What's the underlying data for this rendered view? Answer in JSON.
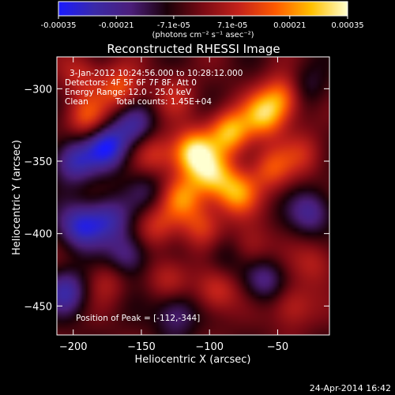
{
  "colorbar": {
    "ticks": [
      "-0.00035",
      "-0.00021",
      "-7.1e-05",
      "7.1e-05",
      "0.00021",
      "0.00035"
    ],
    "tick_values": [
      -0.00035,
      -0.00021,
      -7.1e-05,
      7.1e-05,
      0.00021,
      0.00035
    ],
    "range": [
      -0.00035,
      0.00035
    ],
    "units_label": "(photons cm⁻² s⁻¹ asec⁻²)",
    "colors": [
      "#1a1aff",
      "#3a2aa8",
      "#4b1e7a",
      "#1a0008",
      "#7a0a14",
      "#c4221a",
      "#ff5a00",
      "#ffc000",
      "#ffffd0"
    ]
  },
  "plot": {
    "title": "Reconstructed RHESSI Image",
    "info": {
      "time_range": "3-Jan-2012 10:24:56.000 to 10:28:12.000",
      "detectors": "Detectors: 4F 5F 6F 7F 8F, Att 0",
      "energy": "Energy Range: 12.0 - 25.0 keV",
      "algorithm": "Clean",
      "counts": "Total counts: 1.45E+04"
    },
    "peak_text": "Position of Peak = [-112,-344]",
    "timestamp": "24-Apr-2014 16:42"
  },
  "chart_data": {
    "type": "heatmap",
    "title": "Reconstructed RHESSI Image",
    "xlabel": "Heliocentric X (arcsec)",
    "ylabel": "Heliocentric Y (arcsec)",
    "xlim": [
      -212,
      -12
    ],
    "ylim": [
      -470,
      -278
    ],
    "x_ticks": [
      -200,
      -150,
      -100,
      -50
    ],
    "y_ticks": [
      -300,
      -350,
      -400,
      -450
    ],
    "x_tick_labels": [
      "−200",
      "−150",
      "−100",
      "−50"
    ],
    "y_tick_labels": [
      "−300",
      "−350",
      "−400",
      "−450"
    ],
    "value_range": [
      -0.00035,
      0.00035
    ],
    "peak_position": [
      -112,
      -344
    ],
    "sources": [
      {
        "x": -112,
        "y": -344,
        "value": 0.00035
      },
      {
        "x": -85,
        "y": -330,
        "value": 0.0003
      },
      {
        "x": -60,
        "y": -318,
        "value": 0.00028
      },
      {
        "x": -45,
        "y": -305,
        "value": 0.00024
      },
      {
        "x": -98,
        "y": -360,
        "value": 0.00026
      },
      {
        "x": -120,
        "y": -375,
        "value": 0.00022
      },
      {
        "x": -80,
        "y": -372,
        "value": 0.00025
      },
      {
        "x": -55,
        "y": -355,
        "value": 0.00018
      },
      {
        "x": -30,
        "y": -345,
        "value": 0.00012
      },
      {
        "x": -140,
        "y": -345,
        "value": 0.00015
      },
      {
        "x": -165,
        "y": -300,
        "value": 0.0002
      },
      {
        "x": -190,
        "y": -320,
        "value": 0.00018
      },
      {
        "x": -195,
        "y": -290,
        "value": 0.00012
      },
      {
        "x": -140,
        "y": -395,
        "value": 0.00014
      },
      {
        "x": -105,
        "y": -395,
        "value": 0.00016
      },
      {
        "x": -70,
        "y": -410,
        "value": 0.00012
      },
      {
        "x": -95,
        "y": -440,
        "value": 0.00016
      },
      {
        "x": -130,
        "y": -430,
        "value": 0.00012
      },
      {
        "x": -175,
        "y": -432,
        "value": 0.0001
      },
      {
        "x": -40,
        "y": -450,
        "value": 0.00014
      },
      {
        "x": -22,
        "y": -420,
        "value": 0.00012
      },
      {
        "x": -125,
        "y": -305,
        "value": 0.0001
      },
      {
        "x": -175,
        "y": -340,
        "value": -0.00028
      },
      {
        "x": -200,
        "y": -350,
        "value": -0.00022
      },
      {
        "x": -155,
        "y": -325,
        "value": -0.00018
      },
      {
        "x": -195,
        "y": -395,
        "value": -0.00024
      },
      {
        "x": -175,
        "y": -390,
        "value": -0.0002
      },
      {
        "x": -160,
        "y": -415,
        "value": -0.00018
      },
      {
        "x": -205,
        "y": -440,
        "value": -0.0002
      },
      {
        "x": -125,
        "y": -455,
        "value": -0.00016
      },
      {
        "x": -60,
        "y": -432,
        "value": -0.00016
      },
      {
        "x": -25,
        "y": -385,
        "value": -0.00018
      },
      {
        "x": -30,
        "y": -300,
        "value": -0.00012
      },
      {
        "x": -145,
        "y": -370,
        "value": -0.0001
      },
      {
        "x": -90,
        "y": -415,
        "value": -0.0001
      }
    ]
  }
}
